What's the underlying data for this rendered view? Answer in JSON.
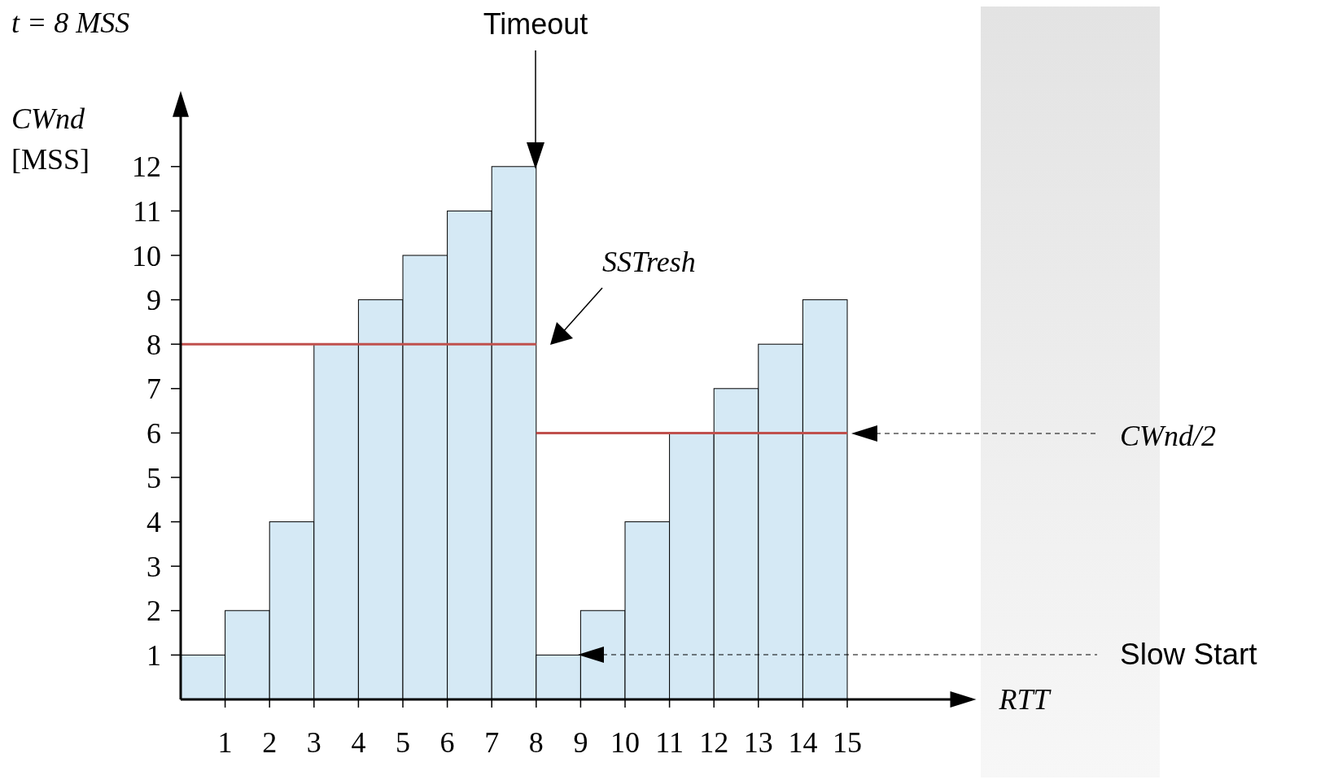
{
  "chart_data": {
    "type": "histogram",
    "xlabel": "RTT",
    "ylabel": "CWnd [MSS]",
    "bins": [
      0,
      1,
      2,
      3,
      4,
      5,
      6,
      7,
      8,
      9,
      10,
      11,
      12,
      13,
      14,
      15
    ],
    "series": [
      {
        "color": "#d5e9f5",
        "values": [
          1,
          2,
          4,
          8,
          9,
          10,
          11,
          12,
          1,
          2,
          4,
          6,
          7,
          8,
          9
        ]
      },
      {
        "type": "line",
        "color": "#c0504d",
        "x": [
          0,
          8
        ],
        "values": [
          8,
          8
        ]
      },
      {
        "type": "line",
        "color": "#c0504d",
        "x": [
          8,
          15
        ],
        "values": [
          6,
          6
        ]
      }
    ],
    "xlim": [
      0,
      17.5
    ],
    "ylim": [
      0,
      13.3
    ],
    "xticks": [
      1,
      2,
      3,
      4,
      5,
      6,
      7,
      8,
      9,
      10,
      11,
      12,
      13,
      14,
      15
    ],
    "yticks": [
      1,
      2,
      3,
      4,
      5,
      6,
      7,
      8,
      9,
      10,
      11,
      12
    ],
    "grid": false,
    "annotations": [
      "t = 8 MSS",
      "Timeout",
      "SSTresh",
      "CWnd/2",
      "Slow Start"
    ]
  }
}
